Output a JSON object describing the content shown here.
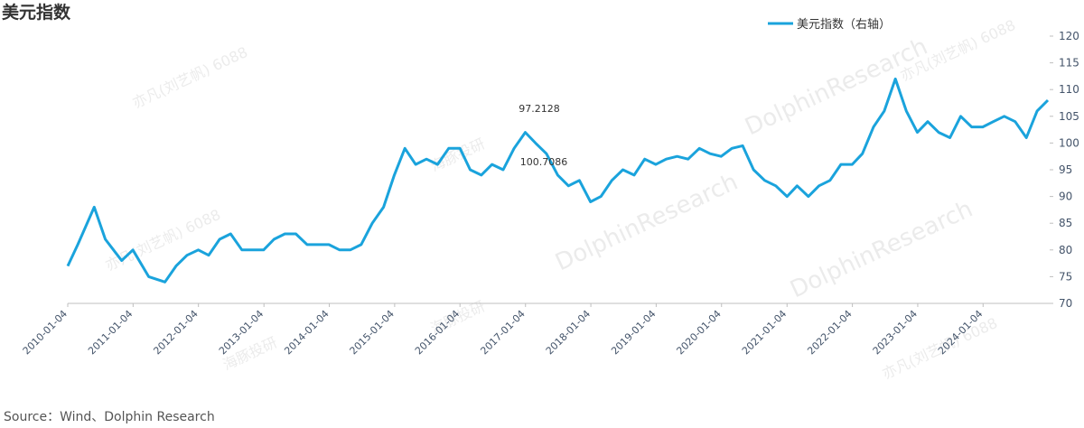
{
  "chart_data": {
    "type": "line",
    "title": "美元指数",
    "source": "Source：Wind、Dolphin  Research",
    "annotations": [
      "97.2128",
      "100.7086"
    ],
    "watermarks": [
      "亦凡(刘艺帆) 6088",
      "海豚投研",
      "DolphinResearch"
    ],
    "xlim": [
      "2010-01-04",
      "2025-01-10"
    ],
    "xticks": [
      "2010-01-04",
      "2011-01-04",
      "2012-01-04",
      "2013-01-04",
      "2014-01-04",
      "2015-01-04",
      "2016-01-04",
      "2017-01-04",
      "2018-01-04",
      "2019-01-04",
      "2020-01-04",
      "2021-01-04",
      "2022-01-04",
      "2023-01-04",
      "2024-01-04"
    ],
    "y2lim": [
      70,
      120
    ],
    "y2ticks": [
      70,
      75,
      80,
      85,
      90,
      95,
      100,
      105,
      110,
      115,
      120
    ],
    "legend": "top",
    "x": [
      "2010-01-04",
      "2010-03-01",
      "2010-06-01",
      "2010-08-02",
      "2010-11-01",
      "2011-01-03",
      "2011-04-01",
      "2011-07-01",
      "2011-09-01",
      "2011-11-01",
      "2012-01-03",
      "2012-03-01",
      "2012-05-01",
      "2012-07-02",
      "2012-09-03",
      "2012-11-01",
      "2013-01-02",
      "2013-03-01",
      "2013-05-01",
      "2013-07-01",
      "2013-09-02",
      "2013-11-01",
      "2014-01-02",
      "2014-03-03",
      "2014-05-01",
      "2014-07-01",
      "2014-09-01",
      "2014-11-03",
      "2015-01-02",
      "2015-03-02",
      "2015-05-01",
      "2015-07-01",
      "2015-09-01",
      "2015-11-02",
      "2016-01-04",
      "2016-03-01",
      "2016-05-02",
      "2016-07-01",
      "2016-09-01",
      "2016-11-01",
      "2017-01-03",
      "2017-03-01",
      "2017-05-01",
      "2017-07-03",
      "2017-09-01",
      "2017-11-01",
      "2018-01-02",
      "2018-03-01",
      "2018-05-01",
      "2018-07-02",
      "2018-09-03",
      "2018-11-01",
      "2019-01-02",
      "2019-03-01",
      "2019-05-01",
      "2019-07-01",
      "2019-09-02",
      "2019-11-01",
      "2020-01-02",
      "2020-03-02",
      "2020-05-01",
      "2020-07-01",
      "2020-09-01",
      "2020-11-02",
      "2021-01-04",
      "2021-03-01",
      "2021-05-03",
      "2021-07-01",
      "2021-09-01",
      "2021-11-01",
      "2022-01-03",
      "2022-03-01",
      "2022-05-02",
      "2022-07-01",
      "2022-09-01",
      "2022-11-01",
      "2023-01-02",
      "2023-03-01",
      "2023-05-01",
      "2023-07-03",
      "2023-09-01",
      "2023-11-01",
      "2024-01-02",
      "2024-03-01",
      "2024-05-01",
      "2024-07-01",
      "2024-09-02",
      "2024-11-01",
      "2024-12-31"
    ],
    "series": [
      {
        "name": "美元指数（右轴）",
        "color": "#1aa3dc",
        "axis": "y2",
        "values": [
          77,
          81,
          88,
          82,
          78,
          80,
          75,
          74,
          77,
          79,
          80,
          79,
          82,
          83,
          80,
          80,
          80,
          82,
          83,
          83,
          81,
          81,
          81,
          80,
          80,
          81,
          85,
          88,
          94,
          99,
          96,
          97,
          96,
          99,
          99,
          95,
          94,
          96,
          95,
          99,
          102,
          100,
          98,
          94,
          92,
          93,
          89,
          90,
          93,
          95,
          94,
          97,
          96,
          97,
          97.5,
          97,
          99,
          98,
          97.5,
          99,
          99.5,
          95,
          93,
          92,
          90,
          92,
          90,
          92,
          93,
          96,
          96,
          98,
          103,
          106,
          112,
          106,
          102,
          104,
          102,
          101,
          105,
          103,
          103,
          104,
          105,
          104,
          101,
          106,
          108
        ]
      }
    ]
  }
}
